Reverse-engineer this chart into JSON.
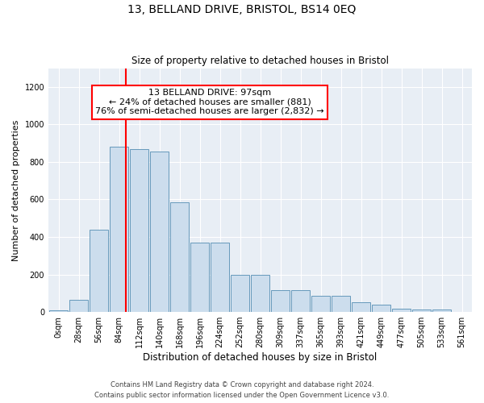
{
  "title1": "13, BELLAND DRIVE, BRISTOL, BS14 0EQ",
  "title2": "Size of property relative to detached houses in Bristol",
  "xlabel": "Distribution of detached houses by size in Bristol",
  "ylabel": "Number of detached properties",
  "bar_labels": [
    "0sqm",
    "28sqm",
    "56sqm",
    "84sqm",
    "112sqm",
    "140sqm",
    "168sqm",
    "196sqm",
    "224sqm",
    "252sqm",
    "280sqm",
    "309sqm",
    "337sqm",
    "365sqm",
    "393sqm",
    "421sqm",
    "449sqm",
    "477sqm",
    "505sqm",
    "533sqm",
    "561sqm"
  ],
  "bar_heights": [
    10,
    65,
    440,
    880,
    870,
    855,
    585,
    370,
    370,
    200,
    200,
    115,
    115,
    87,
    87,
    50,
    38,
    18,
    12,
    12,
    2
  ],
  "bar_color": "#ccdded",
  "bar_edge_color": "#6699bb",
  "vline_x": 3.32,
  "vline_color": "red",
  "annotation_text": "13 BELLAND DRIVE: 97sqm\n← 24% of detached houses are smaller (881)\n76% of semi-detached houses are larger (2,832) →",
  "annotation_box_color": "white",
  "annotation_box_edge": "red",
  "ylim": [
    0,
    1300
  ],
  "yticks": [
    0,
    200,
    400,
    600,
    800,
    1000,
    1200
  ],
  "footer1": "Contains HM Land Registry data © Crown copyright and database right 2024.",
  "footer2": "Contains public sector information licensed under the Open Government Licence v3.0.",
  "bg_color": "#e8eef5",
  "grid_color": "white",
  "title1_fontsize": 10,
  "title2_fontsize": 8.5,
  "xlabel_fontsize": 8.5,
  "ylabel_fontsize": 8,
  "tick_fontsize": 7,
  "footer_fontsize": 6,
  "annot_fontsize": 8
}
